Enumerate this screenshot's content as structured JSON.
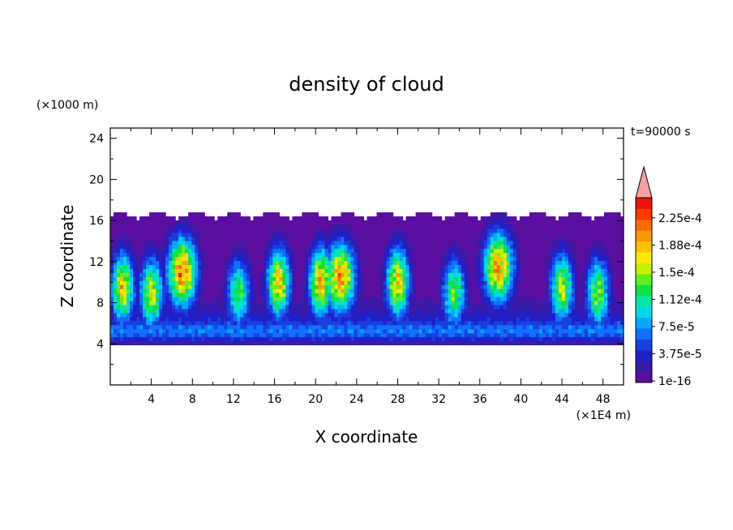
{
  "chart_data": {
    "type": "heatmap",
    "title": "density of cloud",
    "xlabel": "X coordinate",
    "ylabel": "Z coordinate",
    "x_unit": "(×1E4 m)",
    "y_unit": "(×1000 m)",
    "time_label": "t=90000 s",
    "xlim": [
      0,
      50
    ],
    "ylim": [
      0,
      25
    ],
    "x_ticks": [
      "4",
      "8",
      "12",
      "16",
      "20",
      "24",
      "28",
      "32",
      "36",
      "40",
      "44",
      "48"
    ],
    "y_ticks": [
      "4",
      "8",
      "12",
      "16",
      "20",
      "24"
    ],
    "colorbar": {
      "labels": [
        "1e-16",
        "3.75e-5",
        "7.5e-5",
        "1.12e-4",
        "1.5e-4",
        "1.88e-4",
        "2.25e-4"
      ],
      "colors": [
        "#5a0fa0",
        "#3a1aa8",
        "#2020c8",
        "#1840e0",
        "#1070ff",
        "#00a8ff",
        "#00d8e8",
        "#00e8a8",
        "#10e040",
        "#60f020",
        "#c8f000",
        "#ffe800",
        "#ffc000",
        "#ff9800",
        "#ff6a00",
        "#ff3800",
        "#f01010"
      ],
      "extend_color": "#f4a0a0"
    },
    "cloud_layer_z": [
      4,
      16.5
    ],
    "cells": [
      {
        "x": 1.2,
        "z": 9.5,
        "peak": 0.0002
      },
      {
        "x": 4,
        "z": 9.0,
        "peak": 0.00019
      },
      {
        "x": 7,
        "z": 11,
        "peak": 0.00024
      },
      {
        "x": 12.5,
        "z": 9.0,
        "peak": 0.00015
      },
      {
        "x": 16.4,
        "z": 10,
        "peak": 0.00021
      },
      {
        "x": 20.5,
        "z": 10,
        "peak": 0.00022
      },
      {
        "x": 22.4,
        "z": 10.5,
        "peak": 0.00023
      },
      {
        "x": 28,
        "z": 10,
        "peak": 0.00021
      },
      {
        "x": 33.5,
        "z": 9.0,
        "peak": 0.00016
      },
      {
        "x": 37.8,
        "z": 11.5,
        "peak": 0.00023
      },
      {
        "x": 44,
        "z": 9.5,
        "peak": 0.00018
      },
      {
        "x": 47.5,
        "z": 9.0,
        "peak": 0.00017
      }
    ]
  }
}
